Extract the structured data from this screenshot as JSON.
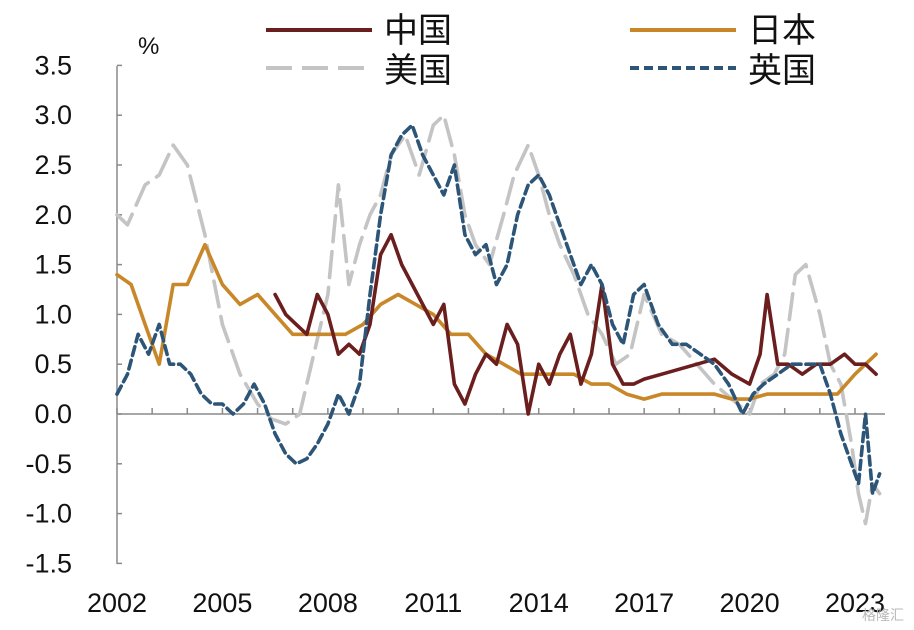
{
  "chart_data": {
    "type": "line",
    "title": "",
    "xlabel": "",
    "ylabel": "%",
    "xlim": [
      2002.0,
      2023.8
    ],
    "ylim": [
      -1.5,
      3.5
    ],
    "yticks": [
      "3.5",
      "3.0",
      "2.5",
      "2.0",
      "1.5",
      "1.0",
      "0.5",
      "0.0",
      "-0.5",
      "-1.0",
      "-1.5"
    ],
    "xticks": [
      "2002",
      "2005",
      "2008",
      "2011",
      "2014",
      "2017",
      "2020",
      "2023"
    ],
    "grid": false,
    "legend_position": "top",
    "series": [
      {
        "name": "美国",
        "color": "#c4c4c4",
        "dash": "long-dash",
        "x": [
          2002.0,
          2002.3,
          2002.8,
          2003.2,
          2003.6,
          2004.0,
          2004.5,
          2005.0,
          2005.5,
          2006.0,
          2006.4,
          2006.8,
          2007.2,
          2007.6,
          2008.0,
          2008.3,
          2008.6,
          2008.9,
          2009.2,
          2009.5,
          2009.8,
          2010.2,
          2010.6,
          2011.0,
          2011.3,
          2011.6,
          2011.9,
          2012.2,
          2012.6,
          2013.0,
          2013.3,
          2013.7,
          2014.0,
          2014.3,
          2014.6,
          2015.0,
          2015.4,
          2015.8,
          2016.2,
          2016.6,
          2017.0,
          2017.5,
          2018.0,
          2018.5,
          2019.0,
          2019.5,
          2020.0,
          2020.3,
          2020.7,
          2021.0,
          2021.3,
          2021.6,
          2022.0,
          2022.3,
          2022.6,
          2022.9,
          2023.1,
          2023.3,
          2023.5,
          2023.7
        ],
        "values": [
          2.0,
          1.9,
          2.3,
          2.4,
          2.7,
          2.5,
          1.8,
          0.9,
          0.4,
          0.1,
          -0.05,
          -0.1,
          0.0,
          0.6,
          1.2,
          2.3,
          1.3,
          1.7,
          2.0,
          2.2,
          2.6,
          2.8,
          2.4,
          2.9,
          3.0,
          2.6,
          2.0,
          1.7,
          1.5,
          2.0,
          2.4,
          2.7,
          2.4,
          2.0,
          1.7,
          1.4,
          1.0,
          0.8,
          0.5,
          0.6,
          1.2,
          0.8,
          0.7,
          0.5,
          0.3,
          0.15,
          0.0,
          0.3,
          0.4,
          0.6,
          1.4,
          1.5,
          1.0,
          0.5,
          0.3,
          -0.3,
          -0.8,
          -1.1,
          -0.7,
          -0.8
        ]
      },
      {
        "name": "日本",
        "color": "#c8882a",
        "dash": "solid",
        "x": [
          2002.0,
          2002.4,
          2002.8,
          2003.2,
          2003.6,
          2004.0,
          2004.5,
          2005.0,
          2005.5,
          2006.0,
          2006.5,
          2007.0,
          2007.5,
          2008.0,
          2008.5,
          2009.0,
          2009.5,
          2010.0,
          2010.5,
          2011.0,
          2011.5,
          2012.0,
          2012.5,
          2013.0,
          2013.5,
          2014.0,
          2014.5,
          2015.0,
          2015.5,
          2016.0,
          2016.5,
          2017.0,
          2017.5,
          2018.0,
          2018.5,
          2019.0,
          2019.5,
          2020.0,
          2020.5,
          2021.0,
          2021.5,
          2022.0,
          2022.5,
          2023.0,
          2023.3,
          2023.6
        ],
        "values": [
          1.4,
          1.3,
          0.9,
          0.5,
          1.3,
          1.3,
          1.7,
          1.3,
          1.1,
          1.2,
          1.0,
          0.8,
          0.8,
          0.8,
          0.8,
          0.9,
          1.1,
          1.2,
          1.1,
          1.0,
          0.8,
          0.8,
          0.6,
          0.5,
          0.4,
          0.4,
          0.4,
          0.4,
          0.3,
          0.3,
          0.2,
          0.15,
          0.2,
          0.2,
          0.2,
          0.2,
          0.15,
          0.15,
          0.2,
          0.2,
          0.2,
          0.2,
          0.2,
          0.4,
          0.5,
          0.6
        ]
      },
      {
        "name": "中国",
        "color": "#6b1e1e",
        "dash": "solid",
        "x": [
          2006.5,
          2006.8,
          2007.1,
          2007.4,
          2007.7,
          2008.0,
          2008.3,
          2008.6,
          2008.9,
          2009.2,
          2009.5,
          2009.8,
          2010.1,
          2010.4,
          2010.7,
          2011.0,
          2011.3,
          2011.6,
          2011.9,
          2012.2,
          2012.5,
          2012.8,
          2013.1,
          2013.4,
          2013.7,
          2014.0,
          2014.3,
          2014.6,
          2014.9,
          2015.2,
          2015.5,
          2015.8,
          2016.1,
          2016.4,
          2016.7,
          2017.0,
          2017.5,
          2018.0,
          2018.5,
          2019.0,
          2019.5,
          2020.0,
          2020.3,
          2020.5,
          2020.8,
          2021.1,
          2021.5,
          2021.9,
          2022.3,
          2022.7,
          2023.0,
          2023.3,
          2023.6
        ],
        "values": [
          1.2,
          1.0,
          0.9,
          0.8,
          1.2,
          1.0,
          0.6,
          0.7,
          0.6,
          0.9,
          1.6,
          1.8,
          1.5,
          1.3,
          1.1,
          0.9,
          1.1,
          0.3,
          0.1,
          0.4,
          0.6,
          0.5,
          0.9,
          0.7,
          0.0,
          0.5,
          0.3,
          0.6,
          0.8,
          0.3,
          0.6,
          1.3,
          0.5,
          0.3,
          0.3,
          0.35,
          0.4,
          0.45,
          0.5,
          0.55,
          0.4,
          0.3,
          0.6,
          1.2,
          0.5,
          0.5,
          0.4,
          0.5,
          0.5,
          0.6,
          0.5,
          0.5,
          0.4
        ]
      },
      {
        "name": "英国",
        "color": "#2c5577",
        "dash": "short-dash",
        "x": [
          2002.0,
          2002.3,
          2002.6,
          2002.9,
          2003.2,
          2003.5,
          2003.8,
          2004.1,
          2004.4,
          2004.7,
          2005.0,
          2005.3,
          2005.6,
          2005.9,
          2006.2,
          2006.5,
          2006.8,
          2007.1,
          2007.4,
          2007.7,
          2008.0,
          2008.3,
          2008.6,
          2008.9,
          2009.2,
          2009.5,
          2009.8,
          2010.1,
          2010.4,
          2010.7,
          2011.0,
          2011.3,
          2011.6,
          2011.9,
          2012.2,
          2012.5,
          2012.8,
          2013.1,
          2013.4,
          2013.7,
          2014.0,
          2014.3,
          2014.6,
          2014.9,
          2015.2,
          2015.5,
          2015.8,
          2016.1,
          2016.4,
          2016.7,
          2017.0,
          2017.4,
          2017.8,
          2018.2,
          2018.6,
          2019.0,
          2019.4,
          2019.8,
          2020.1,
          2020.4,
          2020.8,
          2021.2,
          2021.6,
          2022.0,
          2022.3,
          2022.6,
          2022.9,
          2023.1,
          2023.3,
          2023.5,
          2023.7
        ],
        "values": [
          0.2,
          0.4,
          0.8,
          0.6,
          0.9,
          0.5,
          0.5,
          0.4,
          0.2,
          0.1,
          0.1,
          0.0,
          0.1,
          0.3,
          0.1,
          -0.2,
          -0.4,
          -0.5,
          -0.45,
          -0.3,
          -0.1,
          0.2,
          0.0,
          0.3,
          1.2,
          2.0,
          2.6,
          2.8,
          2.9,
          2.6,
          2.4,
          2.2,
          2.5,
          1.8,
          1.6,
          1.7,
          1.3,
          1.5,
          2.0,
          2.3,
          2.4,
          2.2,
          1.9,
          1.6,
          1.3,
          1.5,
          1.3,
          0.9,
          0.7,
          1.2,
          1.3,
          0.9,
          0.7,
          0.7,
          0.6,
          0.5,
          0.3,
          0.0,
          0.2,
          0.3,
          0.4,
          0.5,
          0.5,
          0.5,
          0.2,
          -0.2,
          -0.5,
          -0.7,
          0.0,
          -0.8,
          -0.6
        ]
      }
    ]
  },
  "legend": {
    "china": "中国",
    "japan": "日本",
    "us": "美国",
    "uk": "英国"
  },
  "watermark": "格隆汇"
}
